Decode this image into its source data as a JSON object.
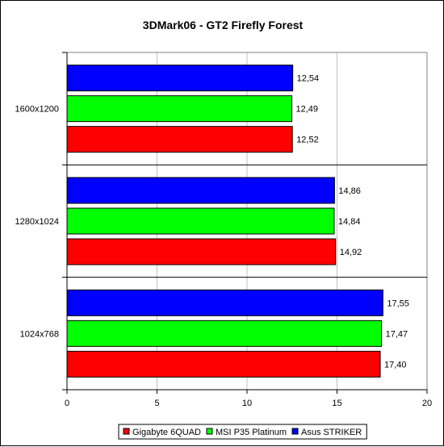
{
  "chart_data": {
    "type": "bar",
    "orientation": "horizontal",
    "title": "3DMark06 - GT2 Firefly Forest",
    "categories": [
      "1600x1200",
      "1280x1024",
      "1024x768"
    ],
    "series": [
      {
        "name": "Asus STRIKER",
        "color": "#0000ff",
        "values": [
          12.54,
          14.86,
          17.55
        ],
        "labels": [
          "12,54",
          "14,86",
          "17,55"
        ]
      },
      {
        "name": "MSI P35 Platinum",
        "color": "#00ff00",
        "values": [
          12.49,
          14.84,
          17.47
        ],
        "labels": [
          "12,49",
          "14,84",
          "17,47"
        ]
      },
      {
        "name": "Gigabyte 6QUAD",
        "color": "#ff0000",
        "values": [
          12.52,
          14.92,
          17.4
        ],
        "labels": [
          "12,52",
          "14,92",
          "17,40"
        ]
      }
    ],
    "xlim": [
      0,
      20
    ],
    "x_ticks": [
      0,
      5,
      10,
      15,
      20
    ],
    "grid": "vertical",
    "legend_position": "bottom",
    "legend_order": [
      "Gigabyte 6QUAD",
      "MSI P35 Platinum",
      "Asus STRIKER"
    ]
  }
}
